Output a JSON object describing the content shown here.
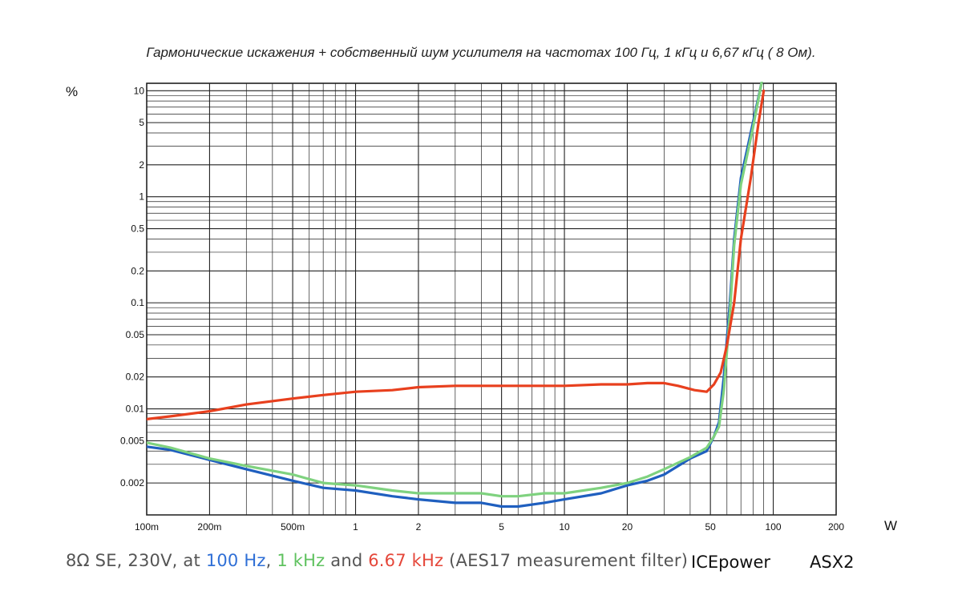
{
  "chart_data": {
    "type": "line",
    "title": "Гармонические искажения + собственный шум усилителя  на частотах 100 Гц, 1 кГц и 6,67 кГц ( 8 Ом).",
    "xlabel": "W",
    "ylabel": "%",
    "x_scale": "log",
    "y_scale": "log",
    "xlim": [
      0.1,
      200
    ],
    "ylim": [
      0.001,
      10
    ],
    "grid": true,
    "x_ticks": [
      {
        "v": 0.1,
        "label": "100m"
      },
      {
        "v": 0.2,
        "label": "200m"
      },
      {
        "v": 0.5,
        "label": "500m"
      },
      {
        "v": 1,
        "label": "1"
      },
      {
        "v": 2,
        "label": "2"
      },
      {
        "v": 5,
        "label": "5"
      },
      {
        "v": 10,
        "label": "10"
      },
      {
        "v": 20,
        "label": "20"
      },
      {
        "v": 50,
        "label": "50"
      },
      {
        "v": 100,
        "label": "100"
      },
      {
        "v": 200,
        "label": "200"
      }
    ],
    "y_ticks": [
      {
        "v": 10,
        "label": "10"
      },
      {
        "v": 5,
        "label": "5"
      },
      {
        "v": 2,
        "label": "2"
      },
      {
        "v": 1,
        "label": "1"
      },
      {
        "v": 0.5,
        "label": "0.5"
      },
      {
        "v": 0.2,
        "label": "0.2"
      },
      {
        "v": 0.1,
        "label": "0.1"
      },
      {
        "v": 0.05,
        "label": "0.05"
      },
      {
        "v": 0.02,
        "label": "0.02"
      },
      {
        "v": 0.01,
        "label": "0.01"
      },
      {
        "v": 0.005,
        "label": "0.005"
      },
      {
        "v": 0.002,
        "label": "0.002"
      }
    ],
    "series": [
      {
        "color": "#1f5fbf",
        "points": [
          [
            0.1,
            0.0044
          ],
          [
            0.13,
            0.0041
          ],
          [
            0.2,
            0.0033
          ],
          [
            0.3,
            0.0027
          ],
          [
            0.5,
            0.0021
          ],
          [
            0.7,
            0.0018
          ],
          [
            1,
            0.0017
          ],
          [
            1.5,
            0.0015
          ],
          [
            2,
            0.0014
          ],
          [
            3,
            0.0013
          ],
          [
            4,
            0.0013
          ],
          [
            5,
            0.0012
          ],
          [
            6,
            0.0012
          ],
          [
            8,
            0.0013
          ],
          [
            10,
            0.0014
          ],
          [
            15,
            0.0016
          ],
          [
            20,
            0.0019
          ],
          [
            25,
            0.0021
          ],
          [
            30,
            0.0024
          ],
          [
            40,
            0.0034
          ],
          [
            48,
            0.004
          ],
          [
            52,
            0.0055
          ],
          [
            55,
            0.0075
          ],
          [
            58,
            0.02
          ],
          [
            62,
            0.1
          ],
          [
            65,
            0.4
          ],
          [
            70,
            1.5
          ],
          [
            80,
            5
          ],
          [
            88,
            12
          ]
        ]
      },
      {
        "color": "#7fd27f",
        "points": [
          [
            0.1,
            0.0048
          ],
          [
            0.13,
            0.0043
          ],
          [
            0.2,
            0.0034
          ],
          [
            0.3,
            0.0029
          ],
          [
            0.5,
            0.0024
          ],
          [
            0.7,
            0.002
          ],
          [
            1,
            0.0019
          ],
          [
            1.5,
            0.0017
          ],
          [
            2,
            0.0016
          ],
          [
            3,
            0.0016
          ],
          [
            4,
            0.0016
          ],
          [
            5,
            0.0015
          ],
          [
            6,
            0.0015
          ],
          [
            8,
            0.0016
          ],
          [
            10,
            0.0016
          ],
          [
            15,
            0.0018
          ],
          [
            20,
            0.002
          ],
          [
            25,
            0.0023
          ],
          [
            30,
            0.0027
          ],
          [
            40,
            0.0035
          ],
          [
            48,
            0.0043
          ],
          [
            52,
            0.0055
          ],
          [
            55,
            0.0068
          ],
          [
            58,
            0.015
          ],
          [
            62,
            0.08
          ],
          [
            65,
            0.35
          ],
          [
            70,
            1.3
          ],
          [
            80,
            4.5
          ],
          [
            88,
            12
          ]
        ]
      },
      {
        "color": "#e8401e",
        "points": [
          [
            0.1,
            0.008
          ],
          [
            0.13,
            0.0085
          ],
          [
            0.2,
            0.0095
          ],
          [
            0.3,
            0.011
          ],
          [
            0.5,
            0.0125
          ],
          [
            0.7,
            0.0135
          ],
          [
            1,
            0.0145
          ],
          [
            1.5,
            0.015
          ],
          [
            2,
            0.016
          ],
          [
            3,
            0.0165
          ],
          [
            5,
            0.0165
          ],
          [
            7,
            0.0165
          ],
          [
            10,
            0.0165
          ],
          [
            15,
            0.017
          ],
          [
            20,
            0.017
          ],
          [
            25,
            0.0175
          ],
          [
            30,
            0.0175
          ],
          [
            35,
            0.0165
          ],
          [
            42,
            0.015
          ],
          [
            48,
            0.0145
          ],
          [
            52,
            0.017
          ],
          [
            56,
            0.022
          ],
          [
            60,
            0.04
          ],
          [
            65,
            0.1
          ],
          [
            70,
            0.4
          ],
          [
            78,
            1.5
          ],
          [
            85,
            5
          ],
          [
            90,
            10
          ]
        ]
      }
    ]
  },
  "footer": {
    "prefix": "8Ω SE, 230V, at ",
    "f1": "100 Hz",
    "sep1": ", ",
    "f2": "1 kHz",
    "sep2": " and ",
    "f3": "6.67 kHz",
    "suffix": " (AES17 measurement filter)",
    "brand": "ICEpower",
    "model": "ASX2"
  }
}
